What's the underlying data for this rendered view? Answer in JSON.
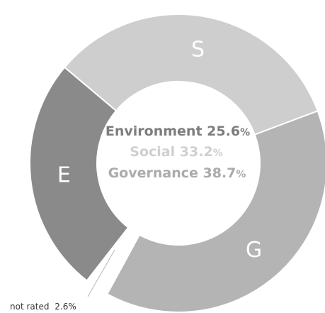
{
  "chart_data": {
    "type": "pie",
    "variant": "donut",
    "series": [
      {
        "name": "Environment",
        "letter": "E",
        "value": 25.6,
        "color": "#8a8a8a",
        "center_color": "#7d7d7d"
      },
      {
        "name": "Social",
        "letter": "S",
        "value": 33.2,
        "color": "#cecece",
        "center_color": "#cfcfcf"
      },
      {
        "name": "Governance",
        "letter": "G",
        "value": 38.7,
        "color": "#b4b4b4",
        "center_color": "#ababab"
      },
      {
        "name": "not rated",
        "letter": "",
        "value": 2.6,
        "color": "#ffffff",
        "center_color": "#333333"
      }
    ],
    "unit": "%",
    "not_rated_label": "not rated",
    "not_rated_value": "2.6%"
  }
}
